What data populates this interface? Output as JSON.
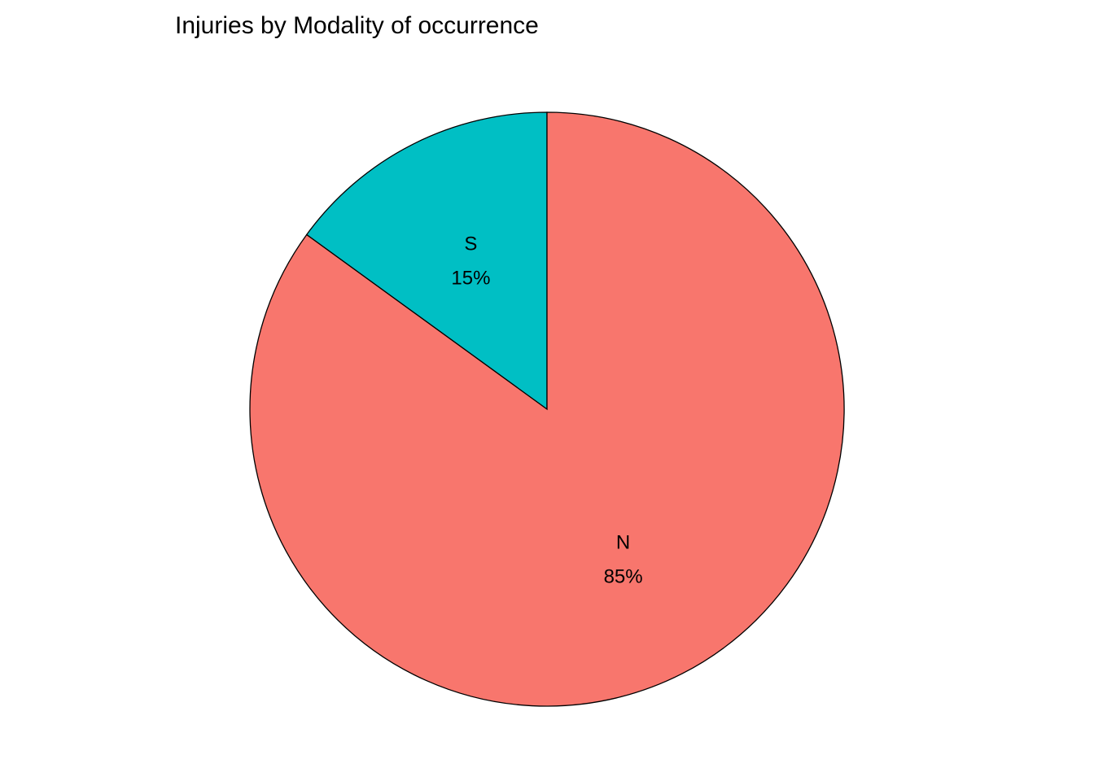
{
  "chart_data": {
    "type": "pie",
    "title": "Injuries by Modality of occurrence",
    "start_angle": "12 o'clock",
    "direction": "counter-clockwise",
    "slices": [
      {
        "category": "S",
        "label": "15%",
        "value": 15,
        "color": "#00BFC4"
      },
      {
        "category": "N",
        "label": "85%",
        "value": 85,
        "color": "#F8766D"
      }
    ],
    "outline_color": "#000000",
    "background": "#FFFFFF",
    "legend": "none"
  }
}
